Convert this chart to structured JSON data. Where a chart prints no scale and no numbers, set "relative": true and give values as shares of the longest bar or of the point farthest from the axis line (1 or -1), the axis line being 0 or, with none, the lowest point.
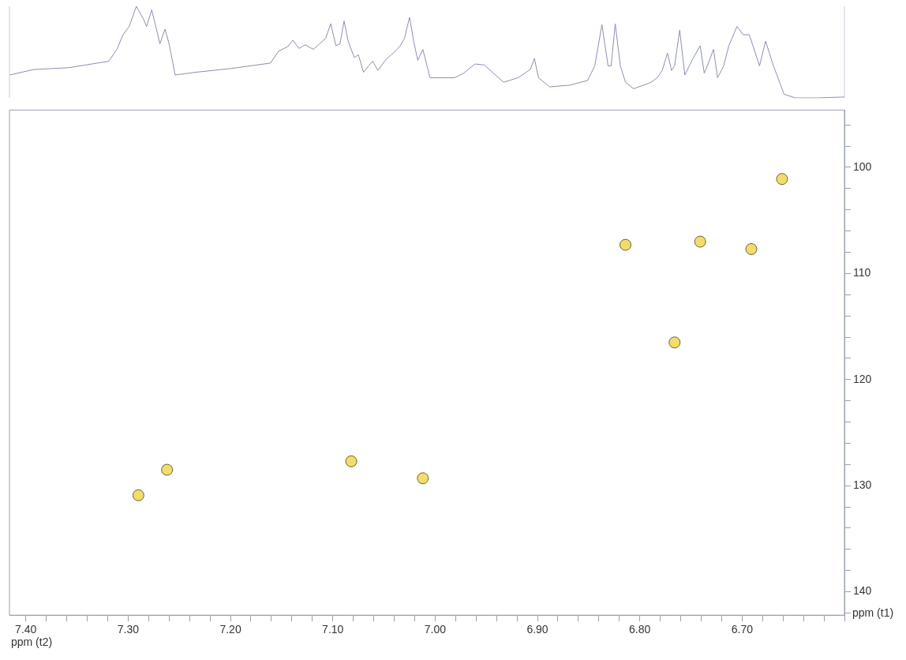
{
  "chart_data": [
    {
      "type": "line",
      "relative": true,
      "tick_labels": false,
      "grid": false,
      "legend": false,
      "marker": "none",
      "line_style": "solid",
      "xlim": [
        7.416,
        6.6
      ],
      "series": [
        {
          "color": "#8a8fb0",
          "x": [
            7.416,
            7.392,
            7.358,
            7.319,
            7.311,
            7.305,
            7.299,
            7.292,
            7.285,
            7.282,
            7.277,
            7.273,
            7.269,
            7.264,
            7.26,
            7.254,
            7.234,
            7.2,
            7.161,
            7.153,
            7.144,
            7.139,
            7.133,
            7.127,
            7.119,
            7.113,
            7.107,
            7.102,
            7.097,
            7.093,
            7.089,
            7.085,
            7.079,
            7.075,
            7.07,
            7.065,
            7.061,
            7.056,
            7.048,
            7.043,
            7.038,
            7.034,
            7.03,
            7.025,
            7.021,
            7.017,
            7.012,
            7.005,
            6.981,
            6.972,
            6.961,
            6.952,
            6.944,
            6.933,
            6.919,
            6.907,
            6.903,
            6.899,
            6.888,
            6.868,
            6.851,
            6.844,
            6.837,
            6.831,
            6.828,
            6.824,
            6.819,
            6.814,
            6.806,
            6.789,
            6.783,
            6.778,
            6.773,
            6.769,
            6.766,
            6.761,
            6.756,
            6.749,
            6.746,
            6.741,
            6.737,
            6.734,
            6.728,
            6.724,
            6.718,
            6.713,
            6.705,
            6.699,
            6.693,
            6.69,
            6.683,
            6.677,
            6.67,
            6.659,
            6.648,
            6.625,
            6.6
          ],
          "values": [
            0.25,
            0.31,
            0.33,
            0.4,
            0.53,
            0.69,
            0.78,
            1,
            0.86,
            0.78,
            0.96,
            0.78,
            0.59,
            0.75,
            0.59,
            0.25,
            0.28,
            0.32,
            0.38,
            0.51,
            0.56,
            0.63,
            0.54,
            0.58,
            0.53,
            0.59,
            0.65,
            0.81,
            0.57,
            0.59,
            0.84,
            0.62,
            0.44,
            0.47,
            0.28,
            0.35,
            0.4,
            0.3,
            0.42,
            0.47,
            0.52,
            0.57,
            0.65,
            0.88,
            0.62,
            0.41,
            0.53,
            0.22,
            0.22,
            0.27,
            0.37,
            0.36,
            0.28,
            0.17,
            0.22,
            0.31,
            0.43,
            0.22,
            0.12,
            0.14,
            0.19,
            0.35,
            0.8,
            0.35,
            0.35,
            0.81,
            0.35,
            0.17,
            0.1,
            0.17,
            0.22,
            0.3,
            0.49,
            0.3,
            0.35,
            0.74,
            0.25,
            0.41,
            0.47,
            0.57,
            0.27,
            0.35,
            0.53,
            0.22,
            0.35,
            0.57,
            0.78,
            0.69,
            0.69,
            0.59,
            0.35,
            0.62,
            0.37,
            0.04,
            0,
            0,
            0.01
          ]
        }
      ]
    },
    {
      "type": "scatter",
      "xlabel": "ppm (t2)",
      "ylabel": "ppm (t1)",
      "grid": false,
      "legend": false,
      "marker": "circle",
      "xlim": [
        7.416,
        6.6
      ],
      "ylim": [
        142.2,
        94.6
      ],
      "xticks": [
        {
          "value": 7.4,
          "label": "7.40"
        },
        {
          "value": 7.38,
          "label": null
        },
        {
          "value": 7.36,
          "label": null
        },
        {
          "value": 7.34,
          "label": null
        },
        {
          "value": 7.32,
          "label": null
        },
        {
          "value": 7.3,
          "label": "7.30"
        },
        {
          "value": 7.28,
          "label": null
        },
        {
          "value": 7.26,
          "label": null
        },
        {
          "value": 7.24,
          "label": null
        },
        {
          "value": 7.22,
          "label": null
        },
        {
          "value": 7.2,
          "label": "7.20"
        },
        {
          "value": 7.18,
          "label": null
        },
        {
          "value": 7.16,
          "label": null
        },
        {
          "value": 7.14,
          "label": null
        },
        {
          "value": 7.12,
          "label": null
        },
        {
          "value": 7.1,
          "label": "7.10"
        },
        {
          "value": 7.08,
          "label": null
        },
        {
          "value": 7.06,
          "label": null
        },
        {
          "value": 7.04,
          "label": null
        },
        {
          "value": 7.02,
          "label": null
        },
        {
          "value": 7.0,
          "label": "7.00"
        },
        {
          "value": 6.98,
          "label": null
        },
        {
          "value": 6.96,
          "label": null
        },
        {
          "value": 6.94,
          "label": null
        },
        {
          "value": 6.92,
          "label": null
        },
        {
          "value": 6.9,
          "label": "6.90"
        },
        {
          "value": 6.88,
          "label": null
        },
        {
          "value": 6.86,
          "label": null
        },
        {
          "value": 6.84,
          "label": null
        },
        {
          "value": 6.82,
          "label": null
        },
        {
          "value": 6.8,
          "label": "6.80"
        },
        {
          "value": 6.78,
          "label": null
        },
        {
          "value": 6.76,
          "label": null
        },
        {
          "value": 6.74,
          "label": null
        },
        {
          "value": 6.72,
          "label": null
        },
        {
          "value": 6.7,
          "label": "6.70"
        },
        {
          "value": 6.68,
          "label": null
        },
        {
          "value": 6.66,
          "label": null
        },
        {
          "value": 6.64,
          "label": null
        },
        {
          "value": 6.62,
          "label": null
        },
        {
          "value": 6.6,
          "label": null
        }
      ],
      "yticks": [
        {
          "value": 96,
          "label": null
        },
        {
          "value": 98,
          "label": null
        },
        100,
        {
          "value": 102,
          "label": null
        },
        {
          "value": 104,
          "label": null
        },
        {
          "value": 106,
          "label": null
        },
        {
          "value": 108,
          "label": null
        },
        110,
        {
          "value": 112,
          "label": null
        },
        {
          "value": 114,
          "label": null
        },
        {
          "value": 116,
          "label": null
        },
        {
          "value": 118,
          "label": null
        },
        120,
        {
          "value": 122,
          "label": null
        },
        {
          "value": 124,
          "label": null
        },
        {
          "value": 126,
          "label": null
        },
        {
          "value": 128,
          "label": null
        },
        130,
        {
          "value": 132,
          "label": null
        },
        {
          "value": 134,
          "label": null
        },
        {
          "value": 136,
          "label": null
        },
        {
          "value": 138,
          "label": null
        },
        140,
        {
          "value": 142,
          "label": null
        }
      ],
      "series": [
        {
          "color": "#f2dc6b",
          "x": [
            7.29,
            7.262,
            7.082,
            7.012,
            6.814,
            6.741,
            6.691,
            6.661,
            6.766
          ],
          "values": [
            130.9,
            128.5,
            127.7,
            129.3,
            107.3,
            107.0,
            107.7,
            101.1,
            116.5
          ]
        }
      ]
    }
  ]
}
